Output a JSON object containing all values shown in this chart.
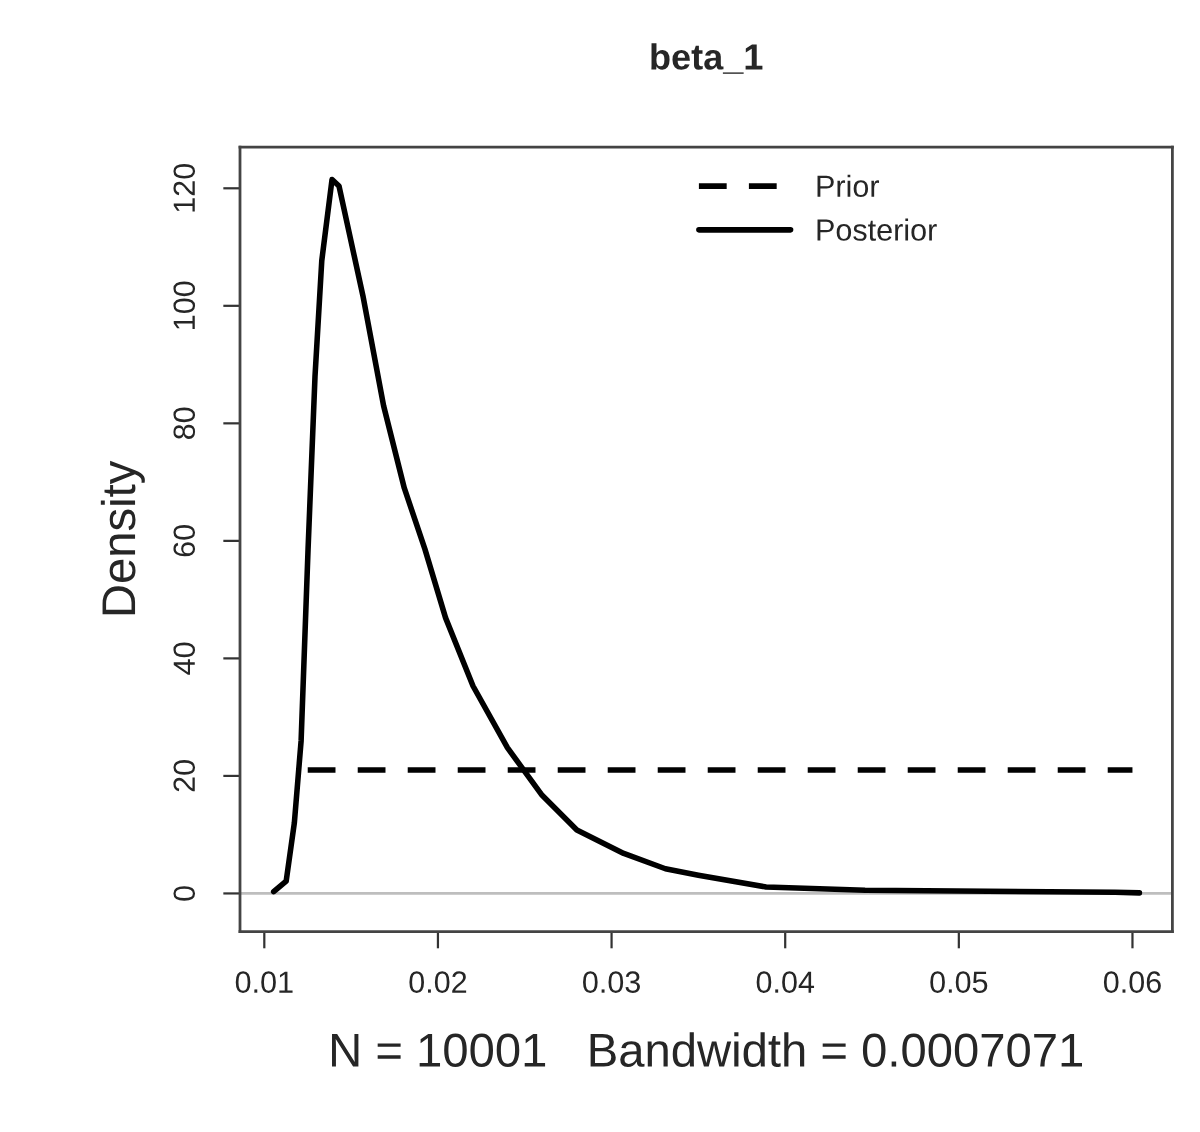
{
  "chart_data": {
    "type": "line",
    "title": "beta_1",
    "xlabel": "N = 10001   Bandwidth = 0.0007071",
    "ylabel": "Density",
    "xlim": [
      0.0086,
      0.0623
    ],
    "ylim": [
      -6.5,
      127
    ],
    "xticks": [
      0.01,
      0.02,
      0.03,
      0.04,
      0.05,
      0.06
    ],
    "yticks": [
      0,
      20,
      40,
      60,
      80,
      100,
      120
    ],
    "grid": false,
    "legend": "top",
    "marker": "none",
    "ref_lines": [
      {
        "axis": "y",
        "value": 0,
        "color": "#bebebe",
        "line_style": "solid"
      }
    ],
    "series": [
      {
        "name": "Prior",
        "color": "#000000",
        "line_style": "dashed",
        "x": [
          0.0125,
          0.06
        ],
        "values": [
          21,
          21
        ]
      },
      {
        "name": "Posterior",
        "color": "#000000",
        "line_style": "solid",
        "x": [
          0.01054,
          0.01126,
          0.01173,
          0.01212,
          0.01252,
          0.01292,
          0.01331,
          0.0139,
          0.0143,
          0.01568,
          0.01687,
          0.01806,
          0.01925,
          0.02044,
          0.02202,
          0.024,
          0.026,
          0.028,
          0.0307,
          0.0331,
          0.035,
          0.0389,
          0.0446,
          0.059,
          0.0604
        ],
        "values": [
          0.3,
          2.1,
          12,
          26,
          58.6,
          88,
          107.7,
          121.5,
          120.4,
          101.7,
          83,
          69,
          58.6,
          46.9,
          35.3,
          24.8,
          16.7,
          10.8,
          6.8,
          4.2,
          3.1,
          1.1,
          0.55,
          0.2,
          0.1
        ]
      }
    ]
  }
}
